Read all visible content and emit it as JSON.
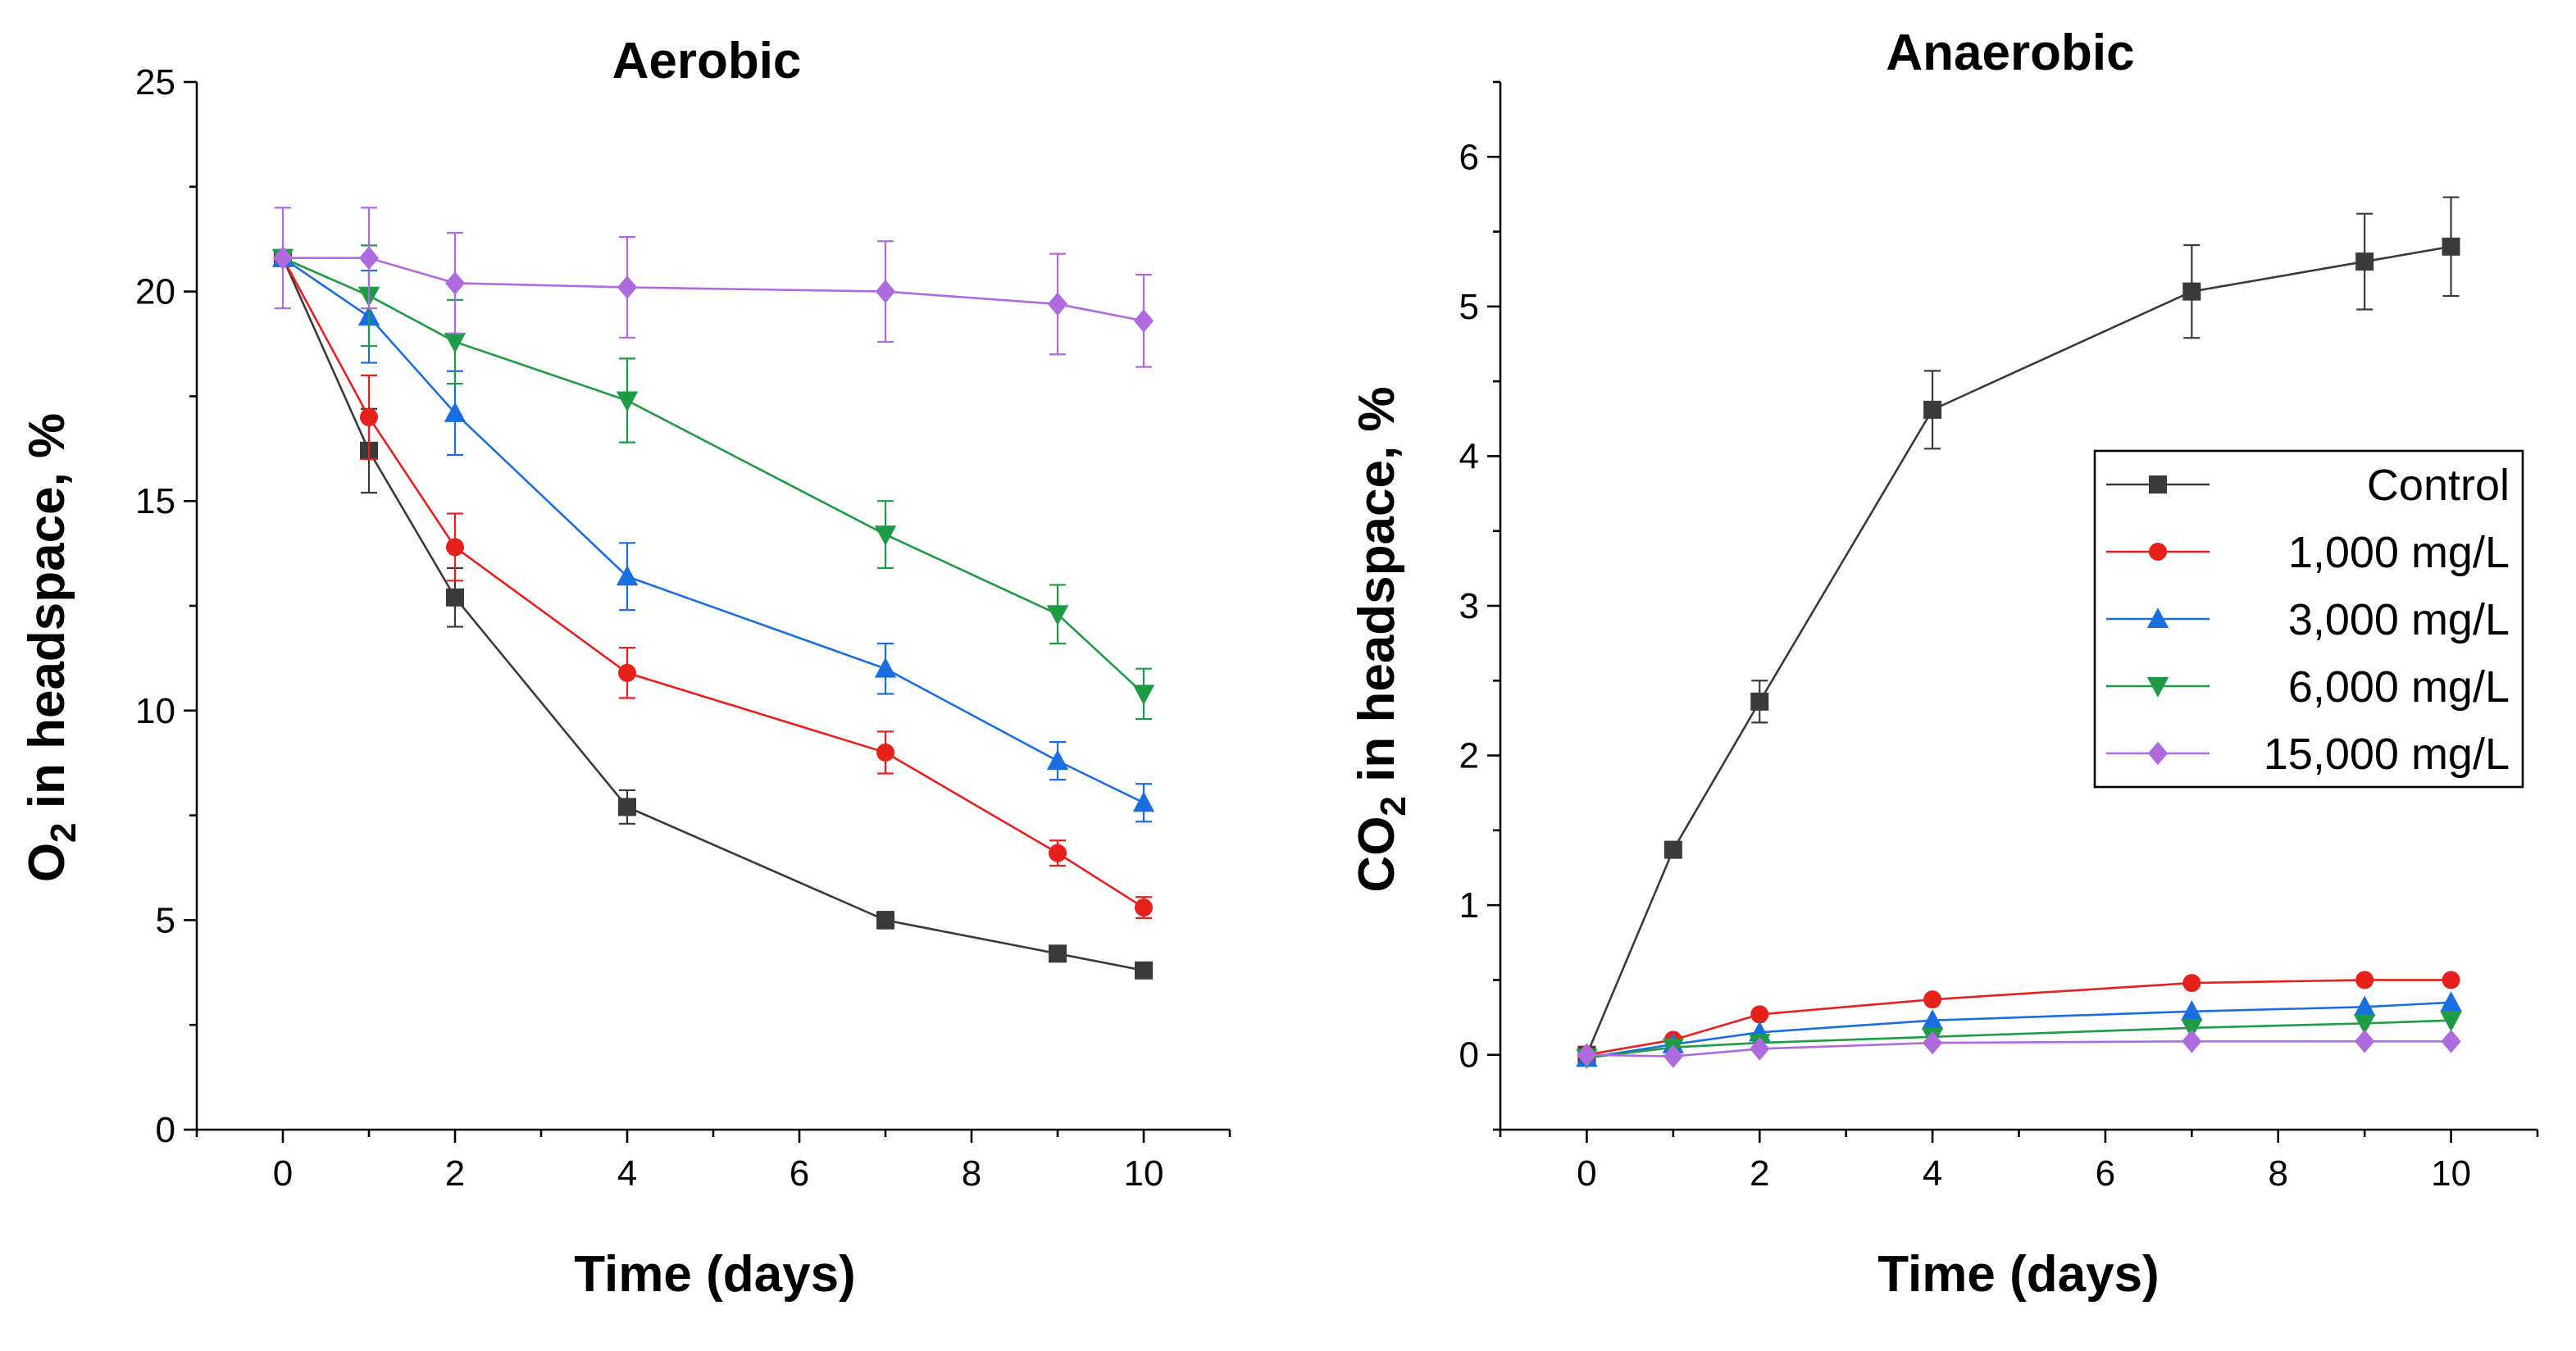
{
  "chart_data": [
    {
      "type": "line",
      "title": "Aerobic",
      "xlabel": "Time (days)",
      "ylabel_main": "O",
      "ylabel_sub": "2",
      "ylabel_rest": " in headspace, %",
      "xlim": [
        -1,
        11
      ],
      "ylim": [
        0,
        25
      ],
      "xticks": [
        0,
        2,
        4,
        6,
        8,
        10
      ],
      "yticks": [
        0,
        5,
        10,
        15,
        20,
        25
      ],
      "x": [
        0,
        1,
        2,
        4,
        7,
        9,
        10
      ],
      "series": [
        {
          "name": "Control",
          "color": "#3a3a3a",
          "marker": "square",
          "values": [
            20.8,
            16.2,
            12.7,
            7.7,
            5.0,
            4.2,
            3.8
          ],
          "errors": [
            0.0,
            1.0,
            0.7,
            0.4,
            0.2,
            0.15,
            0.15
          ]
        },
        {
          "name": "1,000 mg/L",
          "color": "#e8201c",
          "marker": "circle",
          "values": [
            20.8,
            17.0,
            13.9,
            10.9,
            9.0,
            6.6,
            5.3
          ],
          "errors": [
            0.0,
            1.0,
            0.8,
            0.6,
            0.5,
            0.3,
            0.25
          ]
        },
        {
          "name": "3,000 mg/L",
          "color": "#1a6fe0",
          "marker": "triangle-up",
          "values": [
            20.8,
            19.4,
            17.1,
            13.2,
            11.0,
            8.8,
            7.8
          ],
          "errors": [
            0.0,
            1.1,
            1.0,
            0.8,
            0.6,
            0.45,
            0.45
          ]
        },
        {
          "name": "6,000 mg/L",
          "color": "#1e9b45",
          "marker": "triangle-down",
          "values": [
            20.8,
            19.9,
            18.8,
            17.4,
            14.2,
            12.3,
            10.4
          ],
          "errors": [
            0.0,
            1.2,
            1.0,
            1.0,
            0.8,
            0.7,
            0.6
          ]
        },
        {
          "name": "15,000 mg/L",
          "color": "#b06ae0",
          "marker": "diamond",
          "values": [
            20.8,
            20.8,
            20.2,
            20.1,
            20.0,
            19.7,
            19.3
          ],
          "errors": [
            1.2,
            1.2,
            1.2,
            1.2,
            1.2,
            1.2,
            1.1
          ]
        }
      ]
    },
    {
      "type": "line",
      "title": "Anaerobic",
      "xlabel": "Time (days)",
      "ylabel_main": "CO",
      "ylabel_sub": "2",
      "ylabel_rest": " in headspace, %",
      "xlim": [
        -1,
        11
      ],
      "ylim": [
        -0.5,
        6.5
      ],
      "xticks": [
        0,
        2,
        4,
        6,
        8,
        10
      ],
      "yticks": [
        0,
        1,
        2,
        3,
        4,
        5,
        6
      ],
      "x": [
        0,
        1,
        2,
        4,
        7,
        9,
        10
      ],
      "legend_position": "right",
      "series": [
        {
          "name": "Control",
          "color": "#3a3a3a",
          "marker": "square",
          "values": [
            0.0,
            1.37,
            2.36,
            4.31,
            5.1,
            5.3,
            5.4
          ],
          "errors": [
            0.0,
            0.05,
            0.14,
            0.26,
            0.31,
            0.32,
            0.33
          ]
        },
        {
          "name": "1,000 mg/L",
          "color": "#e8201c",
          "marker": "circle",
          "values": [
            0.0,
            0.1,
            0.27,
            0.37,
            0.48,
            0.5,
            0.5
          ],
          "errors": [
            0,
            0,
            0,
            0,
            0,
            0,
            0
          ]
        },
        {
          "name": "3,000 mg/L",
          "color": "#1a6fe0",
          "marker": "triangle-up",
          "values": [
            -0.02,
            0.07,
            0.15,
            0.23,
            0.29,
            0.32,
            0.35
          ],
          "errors": [
            0,
            0,
            0,
            0,
            0,
            0,
            0
          ]
        },
        {
          "name": "6,000 mg/L",
          "color": "#1e9b45",
          "marker": "triangle-down",
          "values": [
            -0.02,
            0.05,
            0.08,
            0.12,
            0.18,
            0.21,
            0.23
          ],
          "errors": [
            0,
            0,
            0,
            0,
            0,
            0,
            0
          ]
        },
        {
          "name": "15,000 mg/L",
          "color": "#b06ae0",
          "marker": "diamond",
          "values": [
            0.0,
            -0.01,
            0.04,
            0.08,
            0.09,
            0.09,
            0.09
          ],
          "errors": [
            0,
            0,
            0,
            0,
            0,
            0,
            0
          ]
        }
      ]
    }
  ]
}
